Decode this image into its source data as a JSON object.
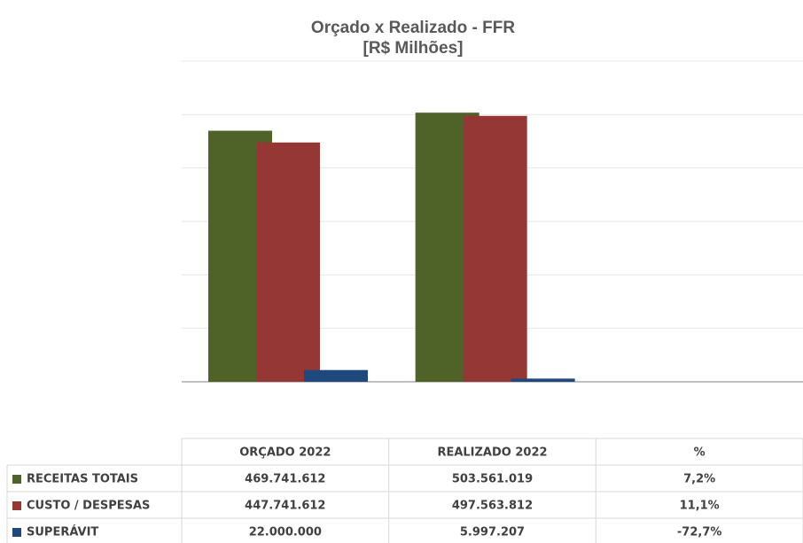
{
  "chart_data": {
    "type": "bar",
    "title": "Orçado x Realizado  - FFR",
    "subtitle": "[R$ Milhões]",
    "categories": [
      "ORÇADO 2022",
      "REALIZADO 2022",
      "%"
    ],
    "series": [
      {
        "name": "RECEITAS TOTAIS",
        "color": "#4f6228",
        "values": [
          469741612,
          503561019,
          7.2
        ],
        "value_labels": [
          "469.741.612",
          "503.561.019",
          "7,2%"
        ]
      },
      {
        "name": "CUSTO / DESPESAS",
        "color": "#953735",
        "values": [
          447741612,
          497563812,
          11.1
        ],
        "value_labels": [
          "447.741.612",
          "497.563.812",
          "11,1%"
        ]
      },
      {
        "name": "SUPERÁVIT",
        "color": "#1f497d",
        "values": [
          22000000,
          5997207,
          -72.7
        ],
        "value_labels": [
          "22.000.000",
          "5.997.207",
          "-72,7%"
        ]
      }
    ],
    "ylim": [
      0,
      600000000
    ],
    "yticks": [
      0,
      100000000,
      200000000,
      300000000,
      400000000,
      500000000,
      600000000
    ],
    "grid": true
  }
}
